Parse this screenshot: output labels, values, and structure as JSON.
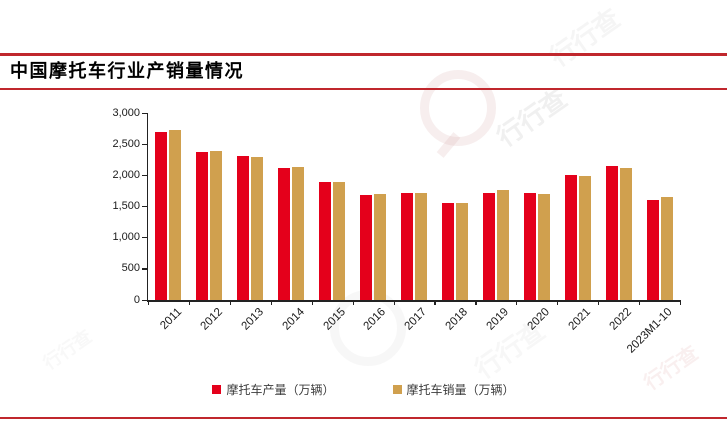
{
  "header": {
    "title": "中国摩托车行业产销量情况"
  },
  "chart_data": {
    "type": "bar",
    "title": "中国摩托车行业产销量情况",
    "categories": [
      "2011",
      "2012",
      "2013",
      "2014",
      "2015",
      "2016",
      "2017",
      "2018",
      "2019",
      "2020",
      "2021",
      "2022",
      "2023M1-10"
    ],
    "series": [
      {
        "name": "摩托车产量（万辆）",
        "color": "#e4001b",
        "values": [
          2700,
          2375,
          2310,
          2125,
          1890,
          1690,
          1715,
          1555,
          1715,
          1710,
          2005,
          2145,
          1610
        ]
      },
      {
        "name": "摩托车销量（万辆）",
        "color": "#d0a04e",
        "values": [
          2725,
          2385,
          2290,
          2135,
          1895,
          1695,
          1715,
          1560,
          1765,
          1705,
          1995,
          2120,
          1655
        ]
      }
    ],
    "xlabel": "",
    "ylabel": "",
    "unit": "万辆",
    "ylim": [
      0,
      3000
    ],
    "ytick_step": 500,
    "ytick_labels": [
      "0",
      "500",
      "1,000",
      "1,500",
      "2,000",
      "2,500",
      "3,000"
    ],
    "grid": false,
    "legend_position": "bottom"
  },
  "watermark": {
    "text": "行行查",
    "logo": "magnifier-icon"
  },
  "colors": {
    "rule_red": "#c0272d",
    "bar_red": "#e4001b",
    "bar_gold": "#d0a04e",
    "axis_text": "#1a1a1a"
  }
}
